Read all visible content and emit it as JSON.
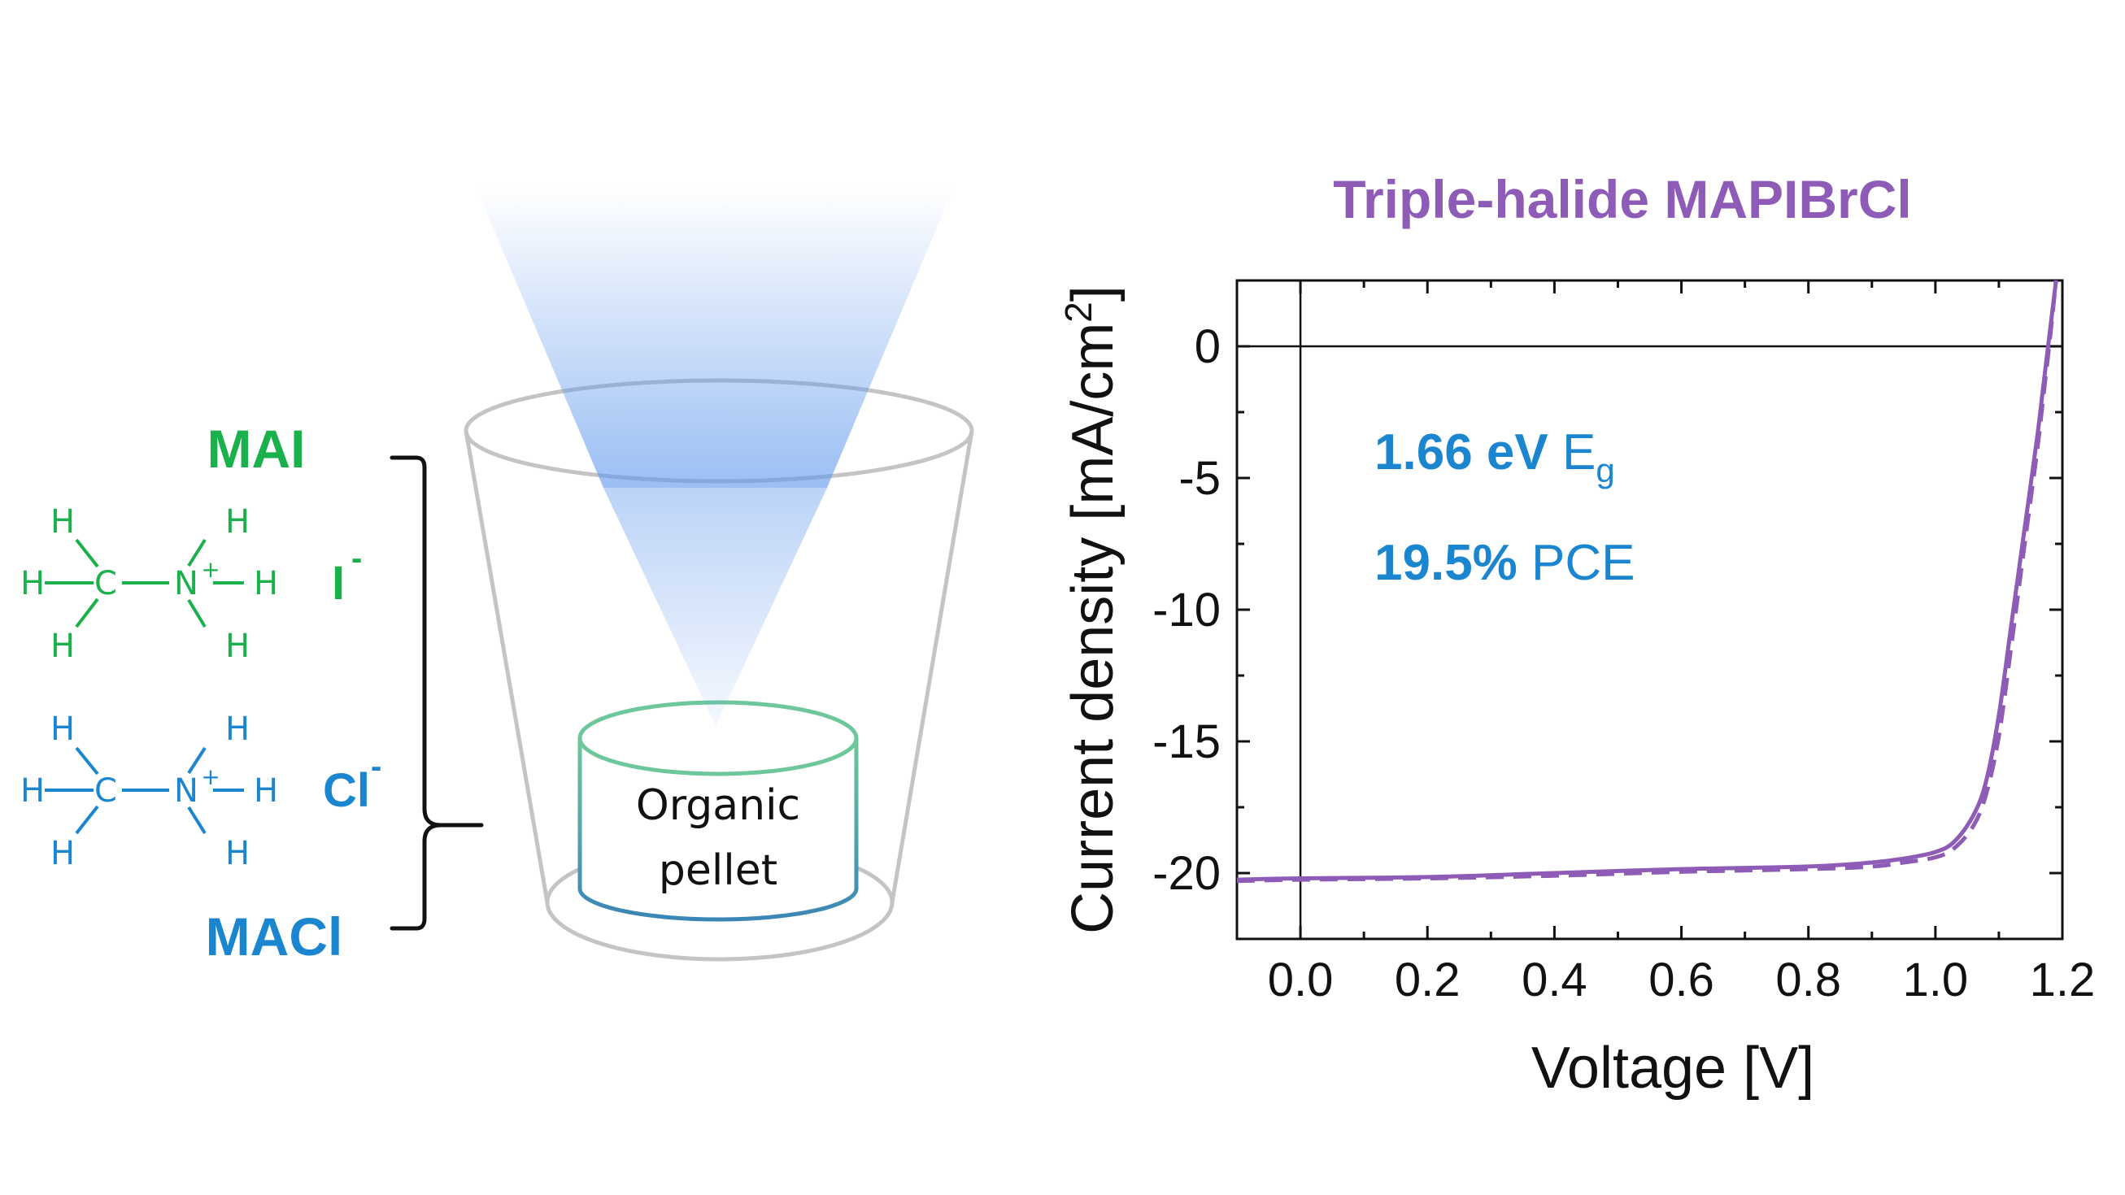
{
  "colors": {
    "green": "#1ab04b",
    "blue": "#1b86cf",
    "purple": "#8e5cb7",
    "gray": "#c4c4c4",
    "beam": "#5d97ec",
    "pellet_top": "#6ec79a",
    "pellet_bottom": "#3a86b6"
  },
  "schematic": {
    "mai_label": "MAI",
    "maci_label": "MACl",
    "iodide": {
      "base": "I",
      "sup": "-"
    },
    "chloride": {
      "base": "Cl",
      "sup": "-"
    },
    "pellet_line1": "Organic",
    "pellet_line2": "pellet",
    "atoms": {
      "h": "H",
      "c": "C",
      "n": "N",
      "plus": "+"
    }
  },
  "chart_data": {
    "type": "line",
    "title": "Triple-halide MAPIBrCl",
    "xlabel": "Voltage [V]",
    "ylabel": {
      "base": "Current density [mA/cm",
      "sup": "2",
      "end": "]"
    },
    "xlim": [
      -0.1,
      1.2
    ],
    "ylim": [
      -22.5,
      2.5
    ],
    "x_ticks": [
      0.0,
      0.2,
      0.4,
      0.6,
      0.8,
      1.0,
      1.2
    ],
    "x_tick_labels": [
      "0.0",
      "0.2",
      "0.4",
      "0.6",
      "0.8",
      "1.0",
      "1.2"
    ],
    "y_ticks": [
      0,
      -5,
      -10,
      -15,
      -20
    ],
    "y_tick_labels": [
      "0",
      "-5",
      "-10",
      "-15",
      "-20"
    ],
    "reference_lines": {
      "x": 0,
      "y": 0
    },
    "annotations": [
      {
        "bold": "1.66 eV",
        "normal": " E",
        "sub": "g"
      },
      {
        "bold": "19.5%",
        "normal": " PCE",
        "sub": ""
      }
    ],
    "series": [
      {
        "style": "solid",
        "x": [
          -0.1,
          0.0,
          0.2,
          0.4,
          0.6,
          0.8,
          0.9,
          0.95,
          1.0,
          1.03,
          1.06,
          1.08,
          1.1,
          1.12,
          1.14,
          1.16,
          1.17,
          1.18,
          1.19
        ],
        "y": [
          -20.25,
          -20.2,
          -20.15,
          -20.0,
          -19.85,
          -19.75,
          -19.6,
          -19.45,
          -19.2,
          -18.8,
          -17.8,
          -16.5,
          -14.0,
          -10.5,
          -7.0,
          -3.5,
          -1.5,
          0.5,
          2.5
        ]
      },
      {
        "style": "dashed",
        "x": [
          -0.1,
          0.0,
          0.2,
          0.4,
          0.6,
          0.8,
          0.9,
          0.95,
          1.0,
          1.03,
          1.06,
          1.08,
          1.1,
          1.12,
          1.14,
          1.16,
          1.17,
          1.18,
          1.19
        ],
        "y": [
          -20.3,
          -20.25,
          -20.2,
          -20.1,
          -19.95,
          -19.85,
          -19.75,
          -19.6,
          -19.4,
          -19.05,
          -18.2,
          -17.0,
          -14.8,
          -11.3,
          -7.6,
          -4.0,
          -1.9,
          0.2,
          2.5
        ]
      }
    ]
  }
}
